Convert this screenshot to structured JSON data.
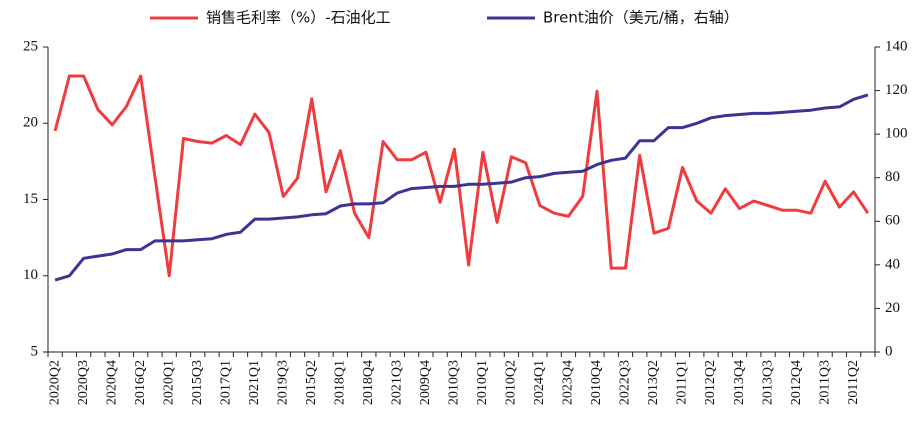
{
  "chart_data": {
    "type": "line",
    "categories": [
      "2020Q2",
      null,
      "2020Q3",
      null,
      "2020Q4",
      null,
      "2016Q2",
      null,
      "2020Q1",
      null,
      "2015Q3",
      null,
      "2017Q1",
      null,
      "2021Q1",
      null,
      "2019Q3",
      null,
      "2015Q2",
      null,
      "2018Q1",
      null,
      "2018Q4",
      null,
      "2021Q3",
      null,
      "2009Q4",
      null,
      "2010Q3",
      null,
      "2010Q1",
      null,
      "2010Q2",
      null,
      "2024Q1",
      null,
      "2023Q4",
      null,
      "2010Q4",
      null,
      "2022Q3",
      null,
      "2013Q2",
      null,
      "2011Q1",
      null,
      "2012Q2",
      null,
      "2013Q4",
      null,
      "2013Q3",
      null,
      "2012Q4",
      null,
      "2011Q3",
      null,
      "2011Q2",
      null
    ],
    "series": [
      {
        "name": "销售毛利率（%）-石油化工",
        "color": "#f03c3c",
        "axis": "y",
        "values": [
          19.5,
          23.1,
          23.1,
          20.9,
          19.9,
          21.1,
          23.1,
          16.5,
          10,
          19,
          18.8,
          18.7,
          19.2,
          18.6,
          20.6,
          19.4,
          15.2,
          16.4,
          21.6,
          15.5,
          18.2,
          14.1,
          12.5,
          18.8,
          17.6,
          17.6,
          18.1,
          14.8,
          18.3,
          10.7,
          18.1,
          13.5,
          17.8,
          17.4,
          14.6,
          14.1,
          13.9,
          15.2,
          22.1,
          10.5,
          10.5,
          17.9,
          12.8,
          13.1,
          17.1,
          14.9,
          14.1,
          15.7,
          14.4,
          14.9,
          14.6,
          14.3,
          14.3,
          14.1,
          16.2,
          14.5,
          15.5,
          14.1
        ]
      },
      {
        "name": "Brent油价（美元/桶，右轴）",
        "color": "#3a3590",
        "axis": "y2",
        "values": [
          33,
          35,
          43,
          44,
          45,
          47,
          47,
          51,
          51,
          51,
          51.5,
          52,
          54,
          55,
          61,
          61,
          61.5,
          62,
          63,
          63.5,
          67,
          68,
          68,
          68.5,
          73,
          75,
          75.5,
          76,
          76,
          77,
          77,
          77.5,
          78,
          80,
          80.5,
          82,
          82.5,
          83,
          86,
          88,
          89,
          97,
          97,
          103,
          103,
          105,
          107.5,
          108.5,
          109,
          109.5,
          109.5,
          110,
          110.5,
          111,
          112,
          112.5,
          116,
          118
        ]
      }
    ],
    "ylim": [
      5,
      25
    ],
    "yticks": [
      5,
      10,
      15,
      20,
      25
    ],
    "y2lim": [
      0,
      140
    ],
    "y2ticks": [
      0,
      20,
      40,
      60,
      80,
      100,
      120,
      140
    ],
    "legend": "top"
  }
}
